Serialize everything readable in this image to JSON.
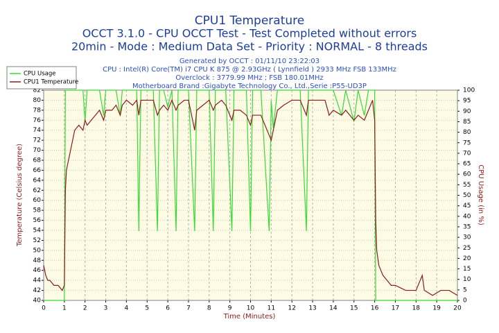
{
  "chart_data": {
    "type": "line",
    "title": "CPU1 Temperature",
    "subtitle": [
      "OCCT 3.1.0 - CPU OCCT Test - Test Completed without errors",
      "20min - Mode : Medium Data Set - Priority : NORMAL - 8 threads"
    ],
    "notes": [
      "Generated by OCCT : 01/11/10 23:22:03",
      "CPU : Intel(R) Core(TM) i7 CPU K 875 @ 2.93GHz ( Lynnfield ) 2933 MHz FSB 133MHz",
      "Overclock : 3779.99 MHz ; FSB 180.01MHz",
      "Motherboard Brand :Gigabyte Technology Co., Ltd.,Serie :P55-UD3P"
    ],
    "xlabel": "Time (Minutes)",
    "ylabel": "Temperature (Celsius degree)",
    "y2label": "CPU Usage (in %)",
    "legend": "top-left",
    "grid": true,
    "xlim": [
      0,
      20
    ],
    "xticks": [
      0,
      1,
      2,
      3,
      4,
      5,
      6,
      7,
      8,
      9,
      10,
      11,
      12,
      13,
      14,
      15,
      16,
      17,
      18,
      19,
      20
    ],
    "ylim": [
      40,
      82
    ],
    "yticks": [
      40,
      42,
      44,
      46,
      48,
      50,
      52,
      54,
      56,
      58,
      60,
      62,
      64,
      66,
      68,
      70,
      72,
      74,
      76,
      78,
      80,
      82
    ],
    "y2lim": [
      0,
      100
    ],
    "y2ticks": [
      0,
      5,
      10,
      15,
      20,
      25,
      30,
      35,
      40,
      45,
      50,
      55,
      60,
      65,
      70,
      75,
      80,
      85,
      90,
      95,
      100
    ],
    "x": [
      0,
      0.1,
      0.2,
      0.3,
      0.5,
      0.7,
      0.9,
      1.0,
      1.05,
      1.1,
      1.2,
      1.3,
      1.5,
      1.7,
      1.9,
      2.0,
      2.1,
      2.3,
      2.5,
      2.7,
      2.9,
      3.0,
      3.3,
      3.5,
      3.7,
      3.8,
      4.0,
      4.3,
      4.5,
      4.6,
      4.7,
      5.0,
      5.3,
      5.5,
      5.6,
      5.8,
      6.0,
      6.2,
      6.4,
      6.5,
      6.8,
      7.0,
      7.3,
      7.4,
      7.7,
      8.0,
      8.2,
      8.3,
      8.6,
      8.8,
      9.1,
      9.2,
      9.5,
      9.8,
      10.0,
      10.1,
      10.5,
      10.9,
      11.0,
      11.1,
      11.3,
      11.6,
      12.0,
      12.4,
      12.7,
      12.8,
      13.2,
      13.6,
      13.8,
      14.0,
      14.4,
      14.6,
      15.0,
      15.2,
      15.5,
      15.7,
      15.9,
      16.0,
      16.05,
      16.1,
      16.2,
      16.4,
      16.6,
      16.8,
      17.0,
      17.5,
      18.0,
      18.3,
      18.4,
      18.8,
      19.2,
      19.6,
      20
    ],
    "series": [
      {
        "name": "CPU Usage",
        "color": "#33dd33",
        "axis": "y2",
        "values": [
          0,
          0,
          0,
          0,
          0,
          0,
          0,
          0,
          100,
          100,
          100,
          100,
          100,
          100,
          100,
          85,
          100,
          100,
          100,
          100,
          88,
          100,
          100,
          100,
          88,
          100,
          100,
          100,
          100,
          33,
          100,
          100,
          100,
          33,
          100,
          100,
          92,
          100,
          33,
          100,
          100,
          100,
          33,
          100,
          100,
          100,
          33,
          100,
          100,
          100,
          33,
          100,
          100,
          100,
          33,
          100,
          100,
          33,
          95,
          82,
          100,
          100,
          100,
          100,
          33,
          100,
          100,
          100,
          100,
          100,
          88,
          100,
          85,
          100,
          88,
          100,
          100,
          100,
          0,
          0,
          0,
          0,
          0,
          0,
          0,
          0,
          0,
          0,
          0,
          0,
          0,
          0,
          0
        ]
      },
      {
        "name": "CPU1 Temperature",
        "color": "#8b1a1a",
        "values": [
          47,
          45,
          44,
          44,
          43,
          43,
          42,
          43,
          62,
          66,
          68,
          70,
          74,
          75,
          74,
          76,
          75,
          76,
          77,
          78,
          76,
          78,
          78,
          79,
          77,
          79,
          80,
          79,
          80,
          77,
          80,
          80,
          80,
          77,
          78,
          79,
          78,
          80,
          78,
          79,
          80,
          80,
          74,
          78,
          79,
          80,
          78,
          79,
          80,
          79,
          76,
          78,
          78,
          77,
          75,
          77,
          77,
          73,
          72,
          74,
          78,
          79,
          80,
          80,
          77,
          80,
          80,
          80,
          77,
          78,
          77,
          78,
          76,
          77,
          76,
          78,
          80,
          76,
          56,
          50,
          47,
          45,
          44,
          43,
          43,
          42,
          42,
          45,
          42,
          41,
          42,
          42,
          41
        ]
      }
    ]
  }
}
